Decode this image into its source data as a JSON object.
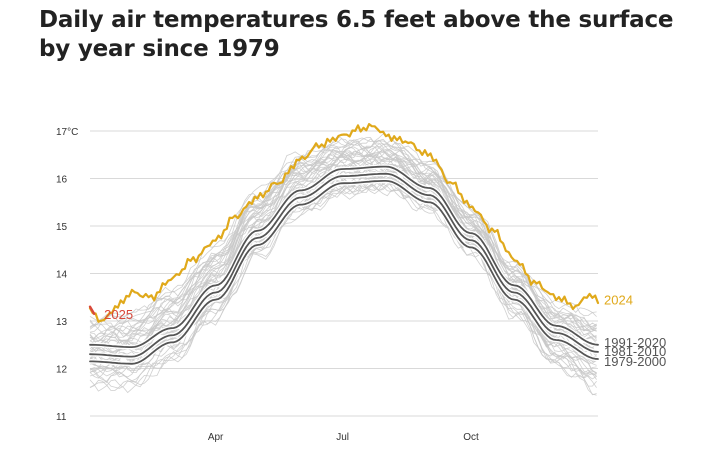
{
  "chart_data": {
    "type": "line",
    "title": "Daily air temperatures 6.5 feet above the surface by year since 1979",
    "xlabel": "",
    "ylabel": "",
    "y_unit": "°C",
    "ylim": [
      11,
      17
    ],
    "y_ticks": [
      {
        "value": 17,
        "label": "17°C"
      },
      {
        "value": 16,
        "label": "16"
      },
      {
        "value": 15,
        "label": "15"
      },
      {
        "value": 14,
        "label": "14"
      },
      {
        "value": 13,
        "label": "13"
      },
      {
        "value": 12,
        "label": "12"
      },
      {
        "value": 11,
        "label": "11"
      }
    ],
    "xlim": [
      1,
      365
    ],
    "x_unit": "day of year",
    "x_ticks": [
      {
        "day": 91,
        "label": "Apr"
      },
      {
        "day": 182,
        "label": "Jul"
      },
      {
        "day": 274,
        "label": "Oct"
      }
    ],
    "grid": true,
    "background_years": {
      "count": 45,
      "color": "#c8c8c8",
      "description_range": "1979-2023",
      "low_envelope": [
        [
          1,
          11.6
        ],
        [
          31,
          11.6
        ],
        [
          60,
          12.1
        ],
        [
          91,
          13.0
        ],
        [
          121,
          14.3
        ],
        [
          152,
          15.2
        ],
        [
          182,
          15.6
        ],
        [
          213,
          15.7
        ],
        [
          244,
          15.3
        ],
        [
          274,
          14.4
        ],
        [
          305,
          13.1
        ],
        [
          335,
          12.0
        ],
        [
          365,
          11.5
        ]
      ],
      "high_envelope": [
        [
          1,
          13.1
        ],
        [
          31,
          13.2
        ],
        [
          60,
          13.7
        ],
        [
          91,
          14.6
        ],
        [
          121,
          15.8
        ],
        [
          152,
          16.6
        ],
        [
          182,
          16.9
        ],
        [
          213,
          16.9
        ],
        [
          244,
          16.4
        ],
        [
          274,
          15.4
        ],
        [
          305,
          14.2
        ],
        [
          335,
          13.4
        ],
        [
          365,
          13.2
        ]
      ]
    },
    "series": [
      {
        "name": "1991-2020",
        "label": "1991-2020",
        "color": "#555555",
        "points": [
          [
            1,
            12.5
          ],
          [
            31,
            12.45
          ],
          [
            60,
            12.85
          ],
          [
            91,
            13.75
          ],
          [
            121,
            14.9
          ],
          [
            152,
            15.75
          ],
          [
            182,
            16.2
          ],
          [
            213,
            16.25
          ],
          [
            244,
            15.8
          ],
          [
            274,
            14.85
          ],
          [
            305,
            13.75
          ],
          [
            335,
            12.9
          ],
          [
            365,
            12.5
          ]
        ]
      },
      {
        "name": "1981-2010",
        "label": "1981-2010",
        "color": "#555555",
        "points": [
          [
            1,
            12.3
          ],
          [
            31,
            12.25
          ],
          [
            60,
            12.7
          ],
          [
            91,
            13.6
          ],
          [
            121,
            14.75
          ],
          [
            152,
            15.6
          ],
          [
            182,
            16.05
          ],
          [
            213,
            16.1
          ],
          [
            244,
            15.65
          ],
          [
            274,
            14.7
          ],
          [
            305,
            13.6
          ],
          [
            335,
            12.75
          ],
          [
            365,
            12.35
          ]
        ]
      },
      {
        "name": "1979-2000",
        "label": "1979-2000",
        "color": "#555555",
        "points": [
          [
            1,
            12.15
          ],
          [
            31,
            12.1
          ],
          [
            60,
            12.55
          ],
          [
            91,
            13.45
          ],
          [
            121,
            14.6
          ],
          [
            152,
            15.45
          ],
          [
            182,
            15.9
          ],
          [
            213,
            15.95
          ],
          [
            244,
            15.5
          ],
          [
            274,
            14.55
          ],
          [
            305,
            13.45
          ],
          [
            335,
            12.6
          ],
          [
            365,
            12.2
          ]
        ]
      },
      {
        "name": "2024",
        "label": "2024",
        "color": "#e0a91b",
        "points": [
          [
            1,
            13.2
          ],
          [
            10,
            13.0
          ],
          [
            20,
            13.3
          ],
          [
            31,
            13.6
          ],
          [
            45,
            13.5
          ],
          [
            60,
            13.9
          ],
          [
            75,
            14.3
          ],
          [
            91,
            14.7
          ],
          [
            105,
            15.2
          ],
          [
            121,
            15.6
          ],
          [
            135,
            15.9
          ],
          [
            152,
            16.4
          ],
          [
            165,
            16.7
          ],
          [
            182,
            16.9
          ],
          [
            195,
            17.05
          ],
          [
            205,
            17.1
          ],
          [
            213,
            16.9
          ],
          [
            225,
            16.8
          ],
          [
            244,
            16.5
          ],
          [
            260,
            15.9
          ],
          [
            274,
            15.4
          ],
          [
            290,
            14.9
          ],
          [
            305,
            14.3
          ],
          [
            320,
            13.8
          ],
          [
            335,
            13.5
          ],
          [
            350,
            13.3
          ],
          [
            357,
            13.55
          ],
          [
            365,
            13.45
          ]
        ]
      },
      {
        "name": "2025",
        "label": "2025",
        "color": "#d9483b",
        "points": [
          [
            1,
            13.3
          ],
          [
            2,
            13.25
          ],
          [
            3,
            13.2
          ],
          [
            4,
            13.15
          ]
        ]
      }
    ]
  }
}
